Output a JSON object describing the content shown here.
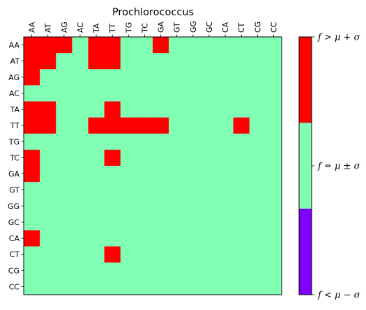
{
  "chart_data": {
    "type": "heatmap",
    "title": "Prochlorococcus",
    "x_labels": [
      "AA",
      "AT",
      "AG",
      "AC",
      "TA",
      "TT",
      "TG",
      "TC",
      "GA",
      "GT",
      "GG",
      "GC",
      "CA",
      "CT",
      "CG",
      "CC"
    ],
    "y_labels": [
      "AA",
      "AT",
      "AG",
      "AC",
      "TA",
      "TT",
      "TG",
      "TC",
      "GA",
      "GT",
      "GG",
      "GC",
      "CA",
      "CT",
      "CG",
      "CC"
    ],
    "x_axis_position": "top",
    "legend": "colorbar-right",
    "colorbar": [
      {
        "label": "f > μ + σ",
        "value": 1,
        "color": "#ff0000"
      },
      {
        "label": "f = μ ± σ",
        "value": 0,
        "color": "#80ffb4"
      },
      {
        "label": "f < μ − σ",
        "value": -1,
        "color": "#8000ff"
      }
    ],
    "matrix": [
      [
        1,
        1,
        1,
        0,
        1,
        1,
        0,
        0,
        1,
        0,
        0,
        0,
        0,
        0,
        0,
        0
      ],
      [
        1,
        1,
        0,
        0,
        1,
        1,
        0,
        0,
        0,
        0,
        0,
        0,
        0,
        0,
        0,
        0
      ],
      [
        1,
        0,
        0,
        0,
        0,
        0,
        0,
        0,
        0,
        0,
        0,
        0,
        0,
        0,
        0,
        0
      ],
      [
        0,
        0,
        0,
        0,
        0,
        0,
        0,
        0,
        0,
        0,
        0,
        0,
        0,
        0,
        0,
        0
      ],
      [
        1,
        1,
        0,
        0,
        0,
        1,
        0,
        0,
        0,
        0,
        0,
        0,
        0,
        0,
        0,
        0
      ],
      [
        1,
        1,
        0,
        0,
        1,
        1,
        1,
        1,
        1,
        0,
        0,
        0,
        0,
        1,
        0,
        0
      ],
      [
        0,
        0,
        0,
        0,
        0,
        0,
        0,
        0,
        0,
        0,
        0,
        0,
        0,
        0,
        0,
        0
      ],
      [
        1,
        0,
        0,
        0,
        0,
        1,
        0,
        0,
        0,
        0,
        0,
        0,
        0,
        0,
        0,
        0
      ],
      [
        1,
        0,
        0,
        0,
        0,
        0,
        0,
        0,
        0,
        0,
        0,
        0,
        0,
        0,
        0,
        0
      ],
      [
        0,
        0,
        0,
        0,
        0,
        0,
        0,
        0,
        0,
        0,
        0,
        0,
        0,
        0,
        0,
        0
      ],
      [
        0,
        0,
        0,
        0,
        0,
        0,
        0,
        0,
        0,
        0,
        0,
        0,
        0,
        0,
        0,
        0
      ],
      [
        0,
        0,
        0,
        0,
        0,
        0,
        0,
        0,
        0,
        0,
        0,
        0,
        0,
        0,
        0,
        0
      ],
      [
        1,
        0,
        0,
        0,
        0,
        0,
        0,
        0,
        0,
        0,
        0,
        0,
        0,
        0,
        0,
        0
      ],
      [
        0,
        0,
        0,
        0,
        0,
        1,
        0,
        0,
        0,
        0,
        0,
        0,
        0,
        0,
        0,
        0
      ],
      [
        0,
        0,
        0,
        0,
        0,
        0,
        0,
        0,
        0,
        0,
        0,
        0,
        0,
        0,
        0,
        0
      ],
      [
        0,
        0,
        0,
        0,
        0,
        0,
        0,
        0,
        0,
        0,
        0,
        0,
        0,
        0,
        0,
        0
      ]
    ]
  }
}
